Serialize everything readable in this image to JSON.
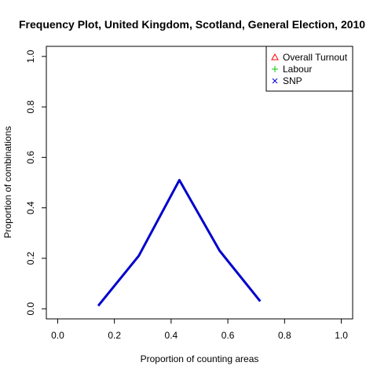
{
  "chart_data": {
    "type": "line",
    "title": "Frequency Plot, United Kingdom, Scotland, General Election, 2010",
    "xlabel": "Proportion of counting areas",
    "ylabel": "Proportion of combinations",
    "xlim": [
      0,
      1
    ],
    "ylim": [
      0,
      1
    ],
    "x_ticks": [
      0,
      0.2,
      0.4,
      0.6,
      0.8,
      1
    ],
    "x_tick_labels": [
      "0.0",
      "0.2",
      "0.4",
      "0.6",
      "0.8",
      "1.0"
    ],
    "y_ticks": [
      0,
      0.2,
      0.4,
      0.6,
      0.8,
      1
    ],
    "y_tick_labels": [
      "0.0",
      "0.2",
      "0.4",
      "0.6",
      "0.8",
      "1.0"
    ],
    "grid": false,
    "legend": {
      "placement": "top-right",
      "entries": [
        {
          "label": "Overall Turnout",
          "color": "#ff0000",
          "symbol": "triangle"
        },
        {
          "label": "Labour",
          "color": "#00cd00",
          "symbol": "plus"
        },
        {
          "label": "SNP",
          "color": "#0000cd",
          "symbol": "cross"
        }
      ]
    },
    "series": [
      {
        "color": "#0000cd",
        "x": [
          0.143,
          0.286,
          0.429,
          0.571,
          0.714
        ],
        "y": [
          0.012,
          0.21,
          0.51,
          0.23,
          0.03
        ]
      }
    ]
  }
}
